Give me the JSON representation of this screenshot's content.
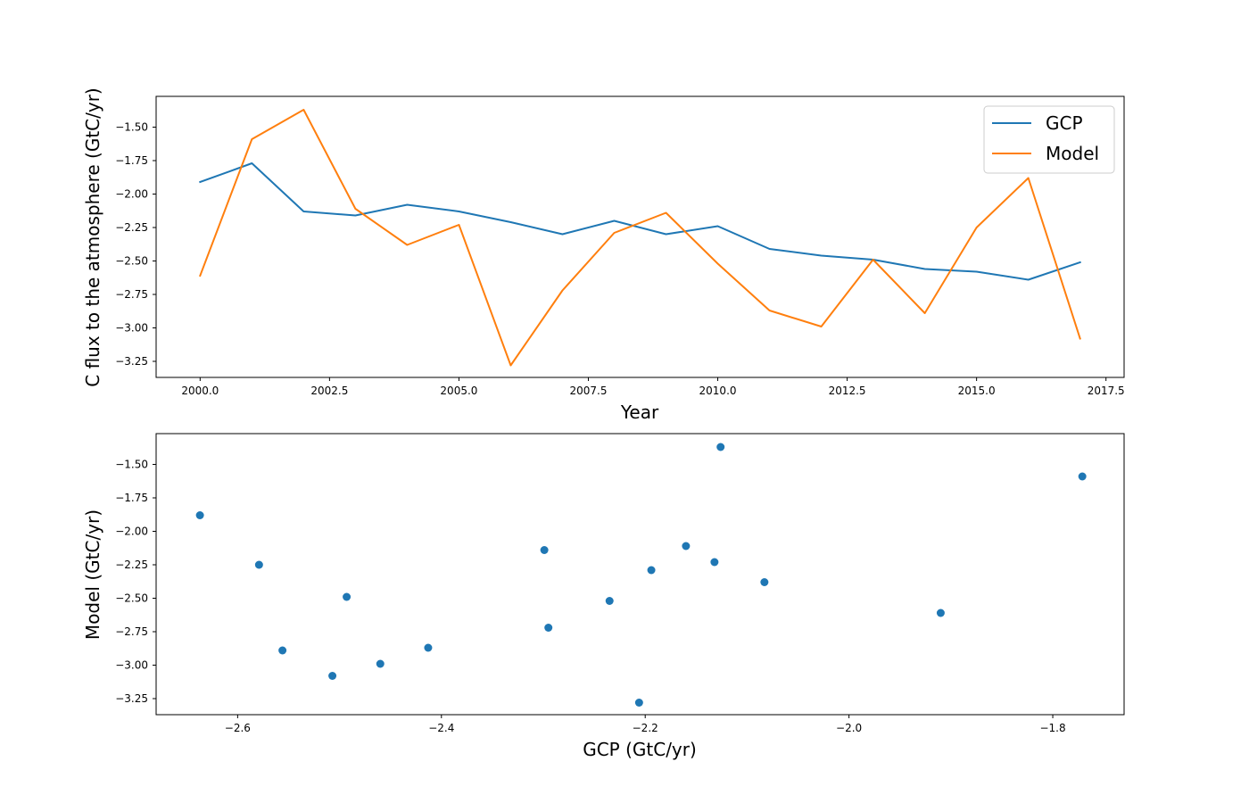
{
  "colors": {
    "gcp": "#1f77b4",
    "model": "#ff7f0e"
  },
  "chart_data": [
    {
      "type": "line",
      "title": "",
      "xlabel": "Year",
      "ylabel": "C flux to the atmosphere (GtC/yr)",
      "xlim": [
        1999.15,
        2017.85
      ],
      "ylim": [
        -3.37,
        -1.27
      ],
      "xticks": [
        2000.0,
        2002.5,
        2005.0,
        2007.5,
        2010.0,
        2012.5,
        2015.0,
        2017.5
      ],
      "xtick_labels": [
        "2000.0",
        "2002.5",
        "2005.0",
        "2007.5",
        "2010.0",
        "2012.5",
        "2015.0",
        "2017.5"
      ],
      "yticks": [
        -1.5,
        -1.75,
        -2.0,
        -2.25,
        -2.5,
        -2.75,
        -3.0,
        -3.25
      ],
      "ytick_labels": [
        "−1.50",
        "−1.75",
        "−2.00",
        "−2.25",
        "−2.50",
        "−2.75",
        "−3.00",
        "−3.25"
      ],
      "grid": false,
      "legend_position": "top-right",
      "x": [
        2000,
        2001,
        2002,
        2003,
        2004,
        2005,
        2006,
        2007,
        2008,
        2009,
        2010,
        2011,
        2012,
        2013,
        2014,
        2015,
        2016,
        2017
      ],
      "series": [
        {
          "name": "GCP",
          "color_key": "gcp",
          "values": [
            -1.91,
            -1.77,
            -2.13,
            -2.16,
            -2.08,
            -2.13,
            -2.21,
            -2.3,
            -2.2,
            -2.3,
            -2.24,
            -2.41,
            -2.46,
            -2.49,
            -2.56,
            -2.58,
            -2.64,
            -2.51
          ]
        },
        {
          "name": "Model",
          "color_key": "model",
          "values": [
            -2.61,
            -1.59,
            -1.37,
            -2.11,
            -2.38,
            -2.23,
            -3.28,
            -2.72,
            -2.29,
            -2.14,
            -2.52,
            -2.87,
            -2.99,
            -2.49,
            -2.89,
            -2.25,
            -1.88,
            -3.08
          ]
        }
      ]
    },
    {
      "type": "scatter",
      "title": "",
      "xlabel": "GCP (GtC/yr)",
      "ylabel": "Model (GtC/yr)",
      "xlim": [
        -2.68,
        -1.73
      ],
      "ylim": [
        -3.37,
        -1.27
      ],
      "xticks": [
        -2.6,
        -2.4,
        -2.2,
        -2.0,
        -1.8
      ],
      "xtick_labels": [
        "−2.6",
        "−2.4",
        "−2.2",
        "−2.0",
        "−1.8"
      ],
      "yticks": [
        -1.5,
        -1.75,
        -2.0,
        -2.25,
        -2.5,
        -2.75,
        -3.0,
        -3.25
      ],
      "ytick_labels": [
        "−1.50",
        "−1.75",
        "−2.00",
        "−2.25",
        "−2.50",
        "−2.75",
        "−3.00",
        "−3.25"
      ],
      "grid": false,
      "color_key": "gcp",
      "points": [
        {
          "x": -2.637,
          "y": -1.88
        },
        {
          "x": -2.579,
          "y": -2.25
        },
        {
          "x": -2.556,
          "y": -2.89
        },
        {
          "x": -2.507,
          "y": -3.08
        },
        {
          "x": -2.493,
          "y": -2.49
        },
        {
          "x": -2.46,
          "y": -2.99
        },
        {
          "x": -2.413,
          "y": -2.87
        },
        {
          "x": -2.299,
          "y": -2.14
        },
        {
          "x": -2.295,
          "y": -2.72
        },
        {
          "x": -2.235,
          "y": -2.52
        },
        {
          "x": -2.206,
          "y": -3.28
        },
        {
          "x": -2.194,
          "y": -2.29
        },
        {
          "x": -2.16,
          "y": -2.11
        },
        {
          "x": -2.132,
          "y": -2.23
        },
        {
          "x": -2.126,
          "y": -1.37
        },
        {
          "x": -2.083,
          "y": -2.38
        },
        {
          "x": -1.91,
          "y": -2.61
        },
        {
          "x": -1.771,
          "y": -1.59
        }
      ]
    }
  ]
}
